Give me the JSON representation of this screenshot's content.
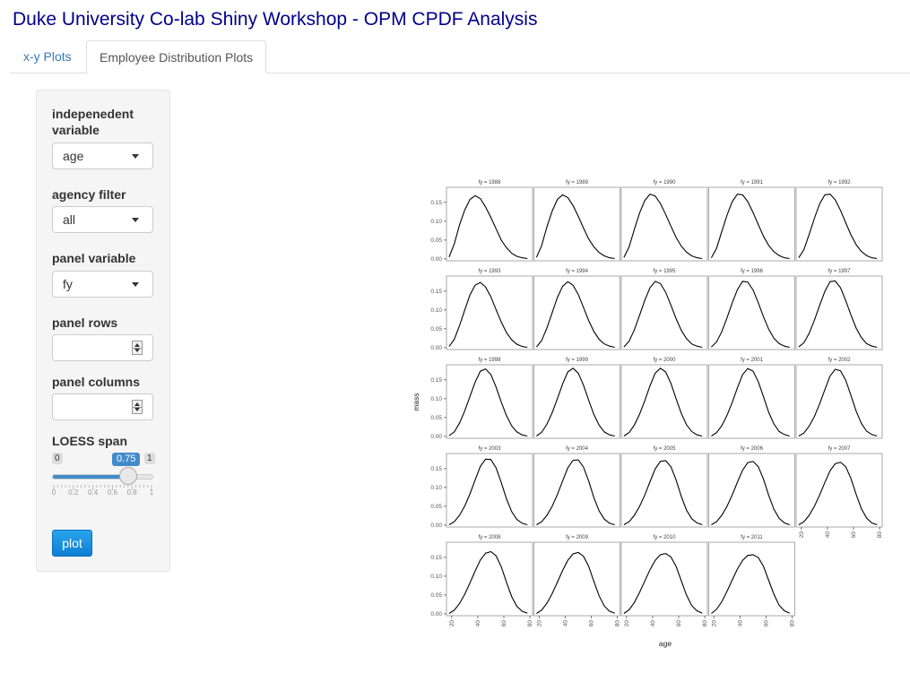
{
  "app": {
    "title": "Duke University Co-lab Shiny Workshop - OPM CPDF Analysis"
  },
  "tabs": [
    {
      "label": "x-y Plots",
      "active": false
    },
    {
      "label": "Employee Distribution Plots",
      "active": true
    }
  ],
  "sidebar": {
    "indep_label_line1": "indepenedent",
    "indep_label_line2": "variable",
    "indep_value": "age",
    "agency_label": "agency filter",
    "agency_value": "all",
    "panel_var_label": "panel variable",
    "panel_var_value": "fy",
    "panel_rows_label": "panel rows",
    "panel_rows_value": "",
    "panel_cols_label": "panel columns",
    "panel_cols_value": "",
    "loess_label": "LOESS span",
    "loess_min": "0",
    "loess_max": "1",
    "loess_value": "0.75",
    "loess_fraction": 0.75,
    "loess_tick_labels": [
      "0",
      "0.2",
      "0.4",
      "0.6",
      "0.8",
      "1"
    ],
    "plot_button": "plot"
  },
  "chart_data": {
    "type": "line",
    "xlabel": "age",
    "ylabel": "mass",
    "panel_variable": "fy",
    "panels": [
      "fy = 1988",
      "fy = 1989",
      "fy = 1990",
      "fy = 1991",
      "fy = 1992",
      "fy = 1993",
      "fy = 1994",
      "fy = 1995",
      "fy = 1996",
      "fy = 1997",
      "fy = 1998",
      "fy = 1999",
      "fy = 2000",
      "fy = 2001",
      "fy = 2002",
      "fy = 2003",
      "fy = 2004",
      "fy = 2005",
      "fy = 2006",
      "fy = 2007",
      "fy = 2008",
      "fy = 2009",
      "fy = 2010",
      "fy = 2011"
    ],
    "ncol": 5,
    "x_ticks": [
      "20",
      "40",
      "60",
      "80"
    ],
    "x_tick_values": [
      20,
      40,
      60,
      80
    ],
    "y_ticks": [
      "0.00",
      "0.05",
      "0.10",
      "0.15"
    ],
    "y_tick_values": [
      0,
      0.05,
      0.1,
      0.15
    ],
    "xlim": [
      16,
      82
    ],
    "ylim": [
      -0.005,
      0.19
    ],
    "series_age": [
      18,
      22,
      26,
      30,
      34,
      38,
      42,
      46,
      50,
      54,
      58,
      62,
      66,
      70,
      74,
      78
    ],
    "curves": [
      [
        0.005,
        0.04,
        0.09,
        0.13,
        0.158,
        0.168,
        0.16,
        0.138,
        0.11,
        0.08,
        0.05,
        0.03,
        0.015,
        0.007,
        0.003,
        0.001
      ],
      [
        0.004,
        0.036,
        0.085,
        0.127,
        0.158,
        0.17,
        0.163,
        0.142,
        0.113,
        0.082,
        0.053,
        0.032,
        0.017,
        0.008,
        0.003,
        0.001
      ],
      [
        0.004,
        0.032,
        0.078,
        0.122,
        0.155,
        0.172,
        0.167,
        0.147,
        0.118,
        0.087,
        0.057,
        0.034,
        0.018,
        0.008,
        0.003,
        0.001
      ],
      [
        0.003,
        0.028,
        0.072,
        0.116,
        0.152,
        0.172,
        0.17,
        0.152,
        0.123,
        0.091,
        0.06,
        0.036,
        0.019,
        0.009,
        0.003,
        0.001
      ],
      [
        0.003,
        0.025,
        0.065,
        0.108,
        0.146,
        0.17,
        0.172,
        0.157,
        0.129,
        0.096,
        0.064,
        0.038,
        0.02,
        0.009,
        0.003,
        0.001
      ],
      [
        0.003,
        0.022,
        0.058,
        0.1,
        0.14,
        0.166,
        0.173,
        0.161,
        0.135,
        0.101,
        0.068,
        0.04,
        0.021,
        0.009,
        0.003,
        0.001
      ],
      [
        0.002,
        0.019,
        0.052,
        0.093,
        0.133,
        0.163,
        0.175,
        0.166,
        0.141,
        0.107,
        0.072,
        0.043,
        0.022,
        0.01,
        0.004,
        0.001
      ],
      [
        0.002,
        0.017,
        0.047,
        0.086,
        0.126,
        0.159,
        0.176,
        0.17,
        0.147,
        0.113,
        0.077,
        0.046,
        0.024,
        0.01,
        0.004,
        0.001
      ],
      [
        0.002,
        0.015,
        0.042,
        0.079,
        0.119,
        0.154,
        0.176,
        0.174,
        0.153,
        0.119,
        0.082,
        0.049,
        0.025,
        0.011,
        0.004,
        0.001
      ],
      [
        0.002,
        0.013,
        0.038,
        0.073,
        0.112,
        0.149,
        0.175,
        0.177,
        0.159,
        0.125,
        0.087,
        0.052,
        0.027,
        0.011,
        0.004,
        0.001
      ],
      [
        0.002,
        0.012,
        0.035,
        0.068,
        0.106,
        0.144,
        0.173,
        0.179,
        0.164,
        0.131,
        0.091,
        0.055,
        0.028,
        0.012,
        0.004,
        0.001
      ],
      [
        0.001,
        0.011,
        0.032,
        0.063,
        0.1,
        0.139,
        0.171,
        0.181,
        0.168,
        0.136,
        0.096,
        0.058,
        0.03,
        0.012,
        0.004,
        0.001
      ],
      [
        0.001,
        0.01,
        0.03,
        0.059,
        0.095,
        0.134,
        0.168,
        0.181,
        0.171,
        0.141,
        0.1,
        0.061,
        0.031,
        0.013,
        0.004,
        0.001
      ],
      [
        0.001,
        0.01,
        0.028,
        0.056,
        0.09,
        0.129,
        0.164,
        0.18,
        0.173,
        0.145,
        0.105,
        0.064,
        0.033,
        0.013,
        0.005,
        0.001
      ],
      [
        0.001,
        0.009,
        0.027,
        0.053,
        0.086,
        0.124,
        0.16,
        0.178,
        0.174,
        0.149,
        0.109,
        0.067,
        0.035,
        0.014,
        0.005,
        0.001
      ],
      [
        0.001,
        0.009,
        0.026,
        0.051,
        0.083,
        0.12,
        0.156,
        0.175,
        0.174,
        0.152,
        0.113,
        0.07,
        0.036,
        0.015,
        0.005,
        0.001
      ],
      [
        0.001,
        0.009,
        0.026,
        0.05,
        0.081,
        0.117,
        0.152,
        0.172,
        0.173,
        0.154,
        0.117,
        0.073,
        0.038,
        0.016,
        0.005,
        0.001
      ],
      [
        0.001,
        0.009,
        0.026,
        0.05,
        0.08,
        0.115,
        0.149,
        0.169,
        0.171,
        0.155,
        0.12,
        0.076,
        0.04,
        0.017,
        0.006,
        0.001
      ],
      [
        0.001,
        0.009,
        0.026,
        0.05,
        0.08,
        0.114,
        0.146,
        0.166,
        0.169,
        0.155,
        0.122,
        0.079,
        0.042,
        0.018,
        0.006,
        0.001
      ],
      [
        0.001,
        0.009,
        0.026,
        0.05,
        0.08,
        0.113,
        0.144,
        0.163,
        0.167,
        0.155,
        0.124,
        0.082,
        0.044,
        0.019,
        0.006,
        0.001
      ],
      [
        0.001,
        0.01,
        0.027,
        0.052,
        0.082,
        0.114,
        0.143,
        0.161,
        0.165,
        0.154,
        0.125,
        0.084,
        0.046,
        0.02,
        0.007,
        0.002
      ],
      [
        0.001,
        0.01,
        0.028,
        0.054,
        0.084,
        0.115,
        0.142,
        0.159,
        0.163,
        0.153,
        0.126,
        0.086,
        0.048,
        0.021,
        0.007,
        0.002
      ],
      [
        0.001,
        0.011,
        0.03,
        0.057,
        0.087,
        0.117,
        0.142,
        0.157,
        0.16,
        0.151,
        0.126,
        0.088,
        0.05,
        0.022,
        0.008,
        0.002
      ],
      [
        0.001,
        0.012,
        0.032,
        0.06,
        0.09,
        0.119,
        0.142,
        0.155,
        0.157,
        0.149,
        0.126,
        0.089,
        0.052,
        0.023,
        0.008,
        0.002
      ]
    ]
  }
}
